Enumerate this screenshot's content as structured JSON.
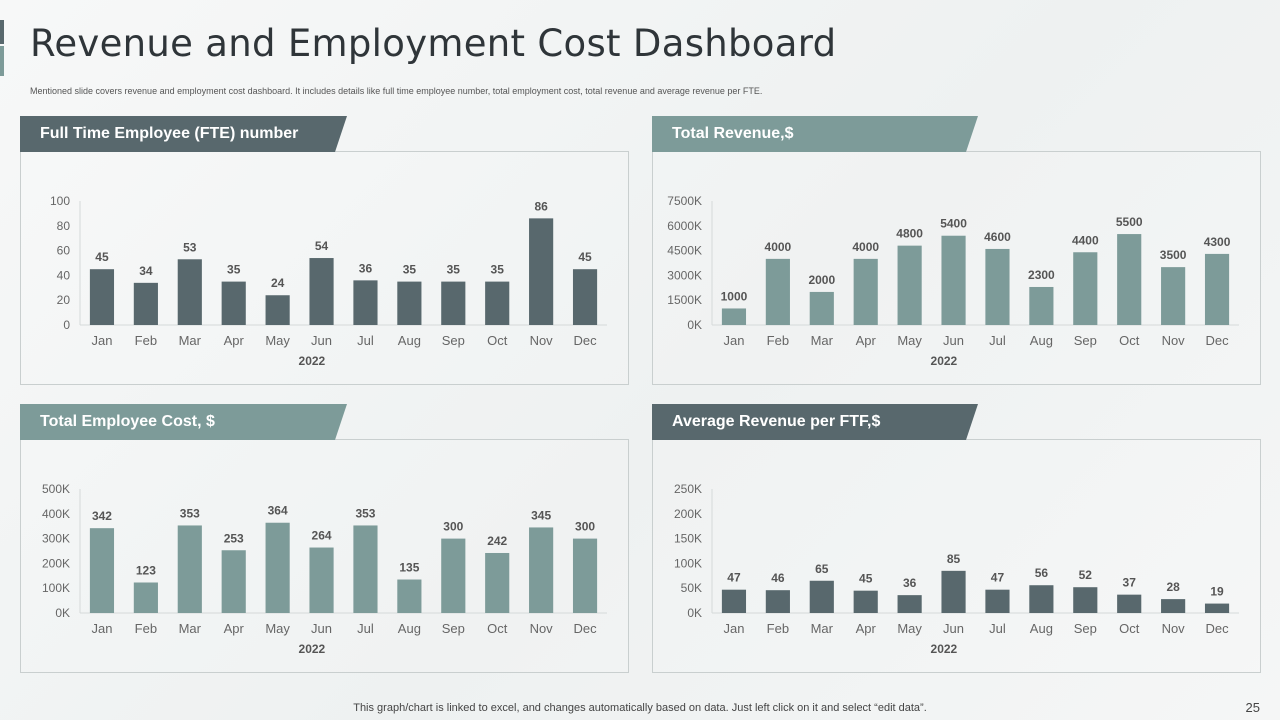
{
  "page": {
    "title": "Revenue and Employment Cost Dashboard",
    "subtitle": "Mentioned slide covers revenue and employment cost dashboard. It includes details like full time employee number, total employment cost, total revenue and average revenue per FTE.",
    "footer": "This graph/chart is linked to excel, and changes automatically based on data. Just left click on it and select “edit data”.",
    "page_number": "25"
  },
  "colors": {
    "dark": "#58686d",
    "light": "#7d9b99",
    "axis": "#d5d9d9",
    "tick": "#666666",
    "label": "#555555"
  },
  "panels": {
    "fte": {
      "title": "Full Time Employee (FTE) number"
    },
    "revenue": {
      "title": "Total Revenue,$"
    },
    "cost": {
      "title": "Total Employee Cost, $"
    },
    "avg": {
      "title": "Average Revenue per FTF,$"
    }
  },
  "chart_data": [
    {
      "id": "fte",
      "type": "bar",
      "title": "Full Time Employee (FTE) number",
      "categories": [
        "Jan",
        "Feb",
        "Mar",
        "Apr",
        "May",
        "Jun",
        "Jul",
        "Aug",
        "Sep",
        "Oct",
        "Nov",
        "Dec"
      ],
      "values": [
        45,
        34,
        53,
        35,
        24,
        54,
        36,
        35,
        35,
        35,
        86,
        45
      ],
      "data_labels": [
        "45",
        "34",
        "53",
        "35",
        "24",
        "54",
        "36",
        "35",
        "35",
        "35",
        "86",
        "45"
      ],
      "ylim": [
        0,
        100
      ],
      "yticks": [
        0,
        20,
        40,
        60,
        80,
        100
      ],
      "ytick_labels": [
        "0",
        "20",
        "40",
        "60",
        "80",
        "100"
      ],
      "xlabel": "2022",
      "color": "dark"
    },
    {
      "id": "revenue",
      "type": "bar",
      "title": "Total Revenue,$",
      "categories": [
        "Jan",
        "Feb",
        "Mar",
        "Apr",
        "May",
        "Jun",
        "Jul",
        "Aug",
        "Sep",
        "Oct",
        "Nov",
        "Dec"
      ],
      "values": [
        1000,
        4000,
        2000,
        4000,
        4800,
        5400,
        4600,
        2300,
        4400,
        5500,
        3500,
        4300
      ],
      "data_labels": [
        "1000",
        "4000",
        "2000",
        "4000",
        "4800",
        "5400",
        "4600",
        "2300",
        "4400",
        "5500",
        "3500",
        "4300"
      ],
      "ylim": [
        0,
        7500
      ],
      "yticks": [
        0,
        1500,
        3000,
        4500,
        6000,
        7500
      ],
      "ytick_labels": [
        "0K",
        "1500K",
        "3000K",
        "4500K",
        "6000K",
        "7500K"
      ],
      "xlabel": "2022",
      "color": "light"
    },
    {
      "id": "cost",
      "type": "bar",
      "title": "Total Employee Cost, $",
      "categories": [
        "Jan",
        "Feb",
        "Mar",
        "Apr",
        "May",
        "Jun",
        "Jul",
        "Aug",
        "Sep",
        "Oct",
        "Nov",
        "Dec"
      ],
      "values": [
        342,
        123,
        353,
        253,
        364,
        264,
        353,
        135,
        300,
        242,
        345,
        300
      ],
      "data_labels": [
        "342",
        "123",
        "353",
        "253",
        "364",
        "264",
        "353",
        "135",
        "300",
        "242",
        "345",
        "300"
      ],
      "ylim": [
        0,
        500
      ],
      "yticks": [
        0,
        100,
        200,
        300,
        400,
        500
      ],
      "ytick_labels": [
        "0K",
        "100K",
        "200K",
        "300K",
        "400K",
        "500K"
      ],
      "xlabel": "2022",
      "color": "light"
    },
    {
      "id": "avg",
      "type": "bar",
      "title": "Average Revenue per FTF,$",
      "categories": [
        "Jan",
        "Feb",
        "Mar",
        "Apr",
        "May",
        "Jun",
        "Jul",
        "Aug",
        "Sep",
        "Oct",
        "Nov",
        "Dec"
      ],
      "values": [
        47,
        46,
        65,
        45,
        36,
        85,
        47,
        56,
        52,
        37,
        28,
        19
      ],
      "data_labels": [
        "47",
        "46",
        "65",
        "45",
        "36",
        "85",
        "47",
        "56",
        "52",
        "37",
        "28",
        "19"
      ],
      "ylim": [
        0,
        250
      ],
      "yticks": [
        0,
        50,
        100,
        150,
        200,
        250
      ],
      "ytick_labels": [
        "0K",
        "50K",
        "100K",
        "150K",
        "200K",
        "250K"
      ],
      "xlabel": "2022",
      "color": "dark"
    }
  ]
}
